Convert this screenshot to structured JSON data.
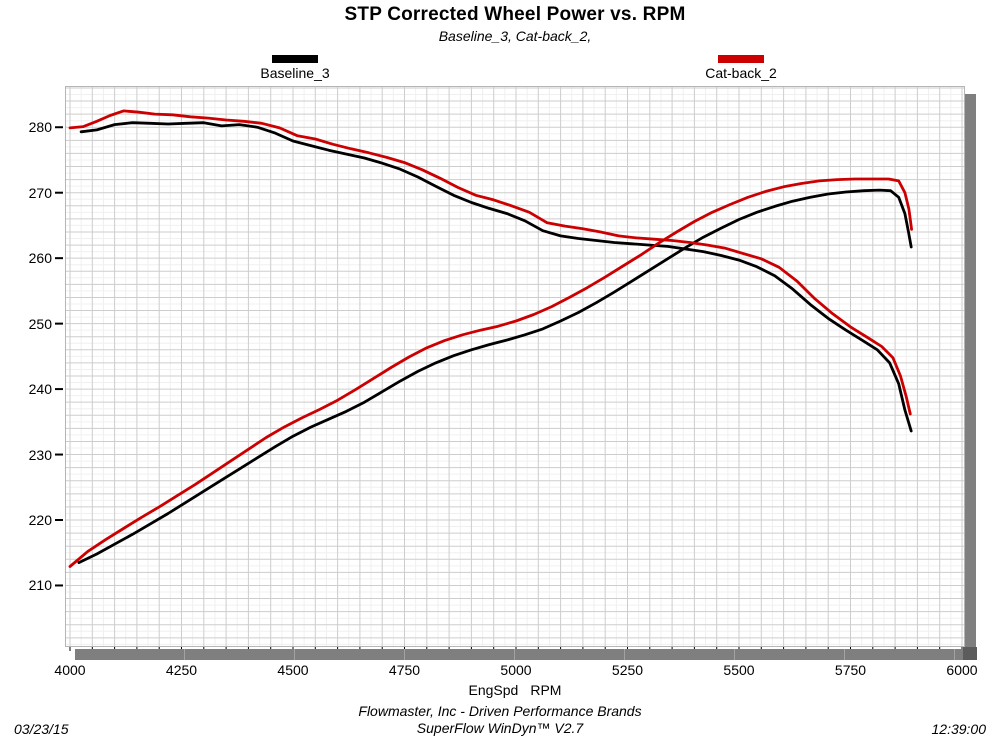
{
  "header": {
    "title": "STP Corrected Wheel Power vs. RPM",
    "subtitle": "Baseline_3, Cat-back_2,"
  },
  "legend": [
    {
      "label": "Baseline_3",
      "color": "#000000"
    },
    {
      "label": "Cat-back_2",
      "color": "#cc0000"
    }
  ],
  "footer": {
    "date": "03/23/15",
    "company": "Flowmaster, Inc - Driven Performance Brands",
    "software": "SuperFlow WinDyn™ V2.7",
    "time": "12:39:00"
  },
  "colors": {
    "accent_red": "#cc0000",
    "series_black": "#000000",
    "grid_minor": "#f0f0f0",
    "grid_major": "#cdcdcd",
    "plot_border": "#b5b5b5",
    "scrollbar": "#7f7f7f"
  },
  "chart_data": {
    "type": "line",
    "title": "STP Corrected Wheel Power vs. RPM",
    "subtitle": "Baseline_3, Cat-back_2,",
    "xlabel": "EngSpd",
    "xunits": "RPM",
    "ylabel": "",
    "xlim": [
      4000,
      6000
    ],
    "ylim": [
      200.6,
      286.3
    ],
    "x_ticks": [
      4000,
      4250,
      4500,
      4750,
      5000,
      5250,
      5500,
      5750,
      6000
    ],
    "y_ticks": [
      280,
      270,
      260,
      250,
      240,
      230,
      220,
      210
    ],
    "grid": {
      "on": true,
      "x_minor": 25,
      "x_major": 50,
      "y_minor": 1,
      "y_major": 2
    },
    "legend_position": "top",
    "series": [
      {
        "name": "Baseline_3",
        "color": "#000000",
        "curves": {
          "descending_curve": [
            [
              4025,
              279.3
            ],
            [
              4060,
              279.6
            ],
            [
              4100,
              280.4
            ],
            [
              4140,
              280.7
            ],
            [
              4180,
              280.6
            ],
            [
              4220,
              280.5
            ],
            [
              4260,
              280.6
            ],
            [
              4300,
              280.7
            ],
            [
              4340,
              280.2
            ],
            [
              4380,
              280.4
            ],
            [
              4420,
              280.0
            ],
            [
              4460,
              279.1
            ],
            [
              4500,
              277.9
            ],
            [
              4540,
              277.2
            ],
            [
              4580,
              276.5
            ],
            [
              4620,
              275.9
            ],
            [
              4660,
              275.3
            ],
            [
              4700,
              274.5
            ],
            [
              4740,
              273.6
            ],
            [
              4780,
              272.4
            ],
            [
              4820,
              271.0
            ],
            [
              4860,
              269.6
            ],
            [
              4900,
              268.5
            ],
            [
              4940,
              267.6
            ],
            [
              4980,
              266.8
            ],
            [
              5020,
              265.7
            ],
            [
              5060,
              264.2
            ],
            [
              5100,
              263.4
            ],
            [
              5140,
              263.0
            ],
            [
              5180,
              262.7
            ],
            [
              5220,
              262.4
            ],
            [
              5260,
              262.2
            ],
            [
              5300,
              262.0
            ],
            [
              5340,
              261.8
            ],
            [
              5380,
              261.4
            ],
            [
              5420,
              261.0
            ],
            [
              5460,
              260.4
            ],
            [
              5500,
              259.7
            ],
            [
              5540,
              258.7
            ],
            [
              5580,
              257.3
            ],
            [
              5620,
              255.3
            ],
            [
              5660,
              252.9
            ],
            [
              5700,
              250.8
            ],
            [
              5740,
              249.0
            ],
            [
              5780,
              247.3
            ],
            [
              5810,
              246.0
            ],
            [
              5838,
              244.0
            ],
            [
              5858,
              240.8
            ],
            [
              5872,
              236.8
            ],
            [
              5886,
              233.6
            ]
          ],
          "ascending_curve": [
            [
              4020,
              213.5
            ],
            [
              4060,
              214.8
            ],
            [
              4100,
              216.3
            ],
            [
              4140,
              217.8
            ],
            [
              4180,
              219.4
            ],
            [
              4220,
              221.0
            ],
            [
              4260,
              222.7
            ],
            [
              4300,
              224.4
            ],
            [
              4340,
              226.1
            ],
            [
              4380,
              227.8
            ],
            [
              4420,
              229.5
            ],
            [
              4460,
              231.2
            ],
            [
              4500,
              232.8
            ],
            [
              4540,
              234.2
            ],
            [
              4580,
              235.4
            ],
            [
              4620,
              236.6
            ],
            [
              4660,
              238.0
            ],
            [
              4700,
              239.6
            ],
            [
              4740,
              241.2
            ],
            [
              4780,
              242.7
            ],
            [
              4820,
              244.0
            ],
            [
              4860,
              245.1
            ],
            [
              4900,
              246.0
            ],
            [
              4940,
              246.8
            ],
            [
              4980,
              247.5
            ],
            [
              5020,
              248.3
            ],
            [
              5060,
              249.2
            ],
            [
              5100,
              250.4
            ],
            [
              5140,
              251.7
            ],
            [
              5180,
              253.2
            ],
            [
              5220,
              254.8
            ],
            [
              5260,
              256.5
            ],
            [
              5300,
              258.2
            ],
            [
              5340,
              259.9
            ],
            [
              5380,
              261.6
            ],
            [
              5420,
              263.2
            ],
            [
              5460,
              264.6
            ],
            [
              5500,
              265.9
            ],
            [
              5540,
              267.0
            ],
            [
              5580,
              267.9
            ],
            [
              5620,
              268.7
            ],
            [
              5660,
              269.3
            ],
            [
              5700,
              269.8
            ],
            [
              5740,
              270.1
            ],
            [
              5780,
              270.3
            ],
            [
              5815,
              270.4
            ],
            [
              5840,
              270.3
            ],
            [
              5858,
              269.3
            ],
            [
              5872,
              266.8
            ],
            [
              5880,
              264.0
            ],
            [
              5886,
              261.7
            ]
          ]
        }
      },
      {
        "name": "Cat-back_2",
        "color": "#cc0000",
        "curves": {
          "descending_curve": [
            [
              4000,
              279.9
            ],
            [
              4030,
              280.1
            ],
            [
              4060,
              280.9
            ],
            [
              4090,
              281.8
            ],
            [
              4120,
              282.5
            ],
            [
              4155,
              282.3
            ],
            [
              4190,
              282.0
            ],
            [
              4230,
              281.9
            ],
            [
              4270,
              281.6
            ],
            [
              4310,
              281.4
            ],
            [
              4350,
              281.1
            ],
            [
              4390,
              280.9
            ],
            [
              4430,
              280.6
            ],
            [
              4470,
              279.9
            ],
            [
              4510,
              278.7
            ],
            [
              4550,
              278.2
            ],
            [
              4590,
              277.4
            ],
            [
              4630,
              276.7
            ],
            [
              4670,
              276.1
            ],
            [
              4710,
              275.4
            ],
            [
              4750,
              274.6
            ],
            [
              4790,
              273.5
            ],
            [
              4830,
              272.2
            ],
            [
              4870,
              270.8
            ],
            [
              4910,
              269.6
            ],
            [
              4950,
              268.9
            ],
            [
              4990,
              268.0
            ],
            [
              5030,
              267.0
            ],
            [
              5070,
              265.4
            ],
            [
              5110,
              264.9
            ],
            [
              5150,
              264.5
            ],
            [
              5190,
              264.0
            ],
            [
              5230,
              263.4
            ],
            [
              5270,
              263.1
            ],
            [
              5310,
              262.9
            ],
            [
              5350,
              262.7
            ],
            [
              5390,
              262.4
            ],
            [
              5430,
              262.0
            ],
            [
              5470,
              261.5
            ],
            [
              5510,
              260.7
            ],
            [
              5550,
              259.9
            ],
            [
              5590,
              258.6
            ],
            [
              5630,
              256.5
            ],
            [
              5670,
              253.8
            ],
            [
              5710,
              251.5
            ],
            [
              5750,
              249.5
            ],
            [
              5790,
              247.8
            ],
            [
              5820,
              246.5
            ],
            [
              5845,
              244.8
            ],
            [
              5862,
              242.0
            ],
            [
              5875,
              238.8
            ],
            [
              5884,
              236.2
            ]
          ],
          "ascending_curve": [
            [
              4000,
              212.9
            ],
            [
              4040,
              215.2
            ],
            [
              4080,
              217.0
            ],
            [
              4120,
              218.7
            ],
            [
              4160,
              220.4
            ],
            [
              4200,
              222.0
            ],
            [
              4240,
              223.7
            ],
            [
              4280,
              225.4
            ],
            [
              4320,
              227.2
            ],
            [
              4360,
              229.0
            ],
            [
              4400,
              230.8
            ],
            [
              4440,
              232.6
            ],
            [
              4480,
              234.2
            ],
            [
              4520,
              235.6
            ],
            [
              4560,
              236.9
            ],
            [
              4600,
              238.3
            ],
            [
              4640,
              239.9
            ],
            [
              4680,
              241.6
            ],
            [
              4720,
              243.3
            ],
            [
              4760,
              244.9
            ],
            [
              4800,
              246.3
            ],
            [
              4840,
              247.4
            ],
            [
              4880,
              248.3
            ],
            [
              4920,
              249.0
            ],
            [
              4960,
              249.6
            ],
            [
              5000,
              250.4
            ],
            [
              5040,
              251.4
            ],
            [
              5080,
              252.6
            ],
            [
              5120,
              254.0
            ],
            [
              5160,
              255.5
            ],
            [
              5200,
              257.1
            ],
            [
              5240,
              258.8
            ],
            [
              5280,
              260.5
            ],
            [
              5320,
              262.3
            ],
            [
              5360,
              264.0
            ],
            [
              5400,
              265.6
            ],
            [
              5440,
              267.0
            ],
            [
              5480,
              268.2
            ],
            [
              5520,
              269.3
            ],
            [
              5560,
              270.2
            ],
            [
              5600,
              270.9
            ],
            [
              5640,
              271.4
            ],
            [
              5680,
              271.8
            ],
            [
              5720,
              272.0
            ],
            [
              5760,
              272.1
            ],
            [
              5800,
              272.1
            ],
            [
              5835,
              272.1
            ],
            [
              5858,
              271.8
            ],
            [
              5872,
              270.0
            ],
            [
              5881,
              267.5
            ],
            [
              5887,
              264.4
            ]
          ]
        }
      }
    ]
  }
}
